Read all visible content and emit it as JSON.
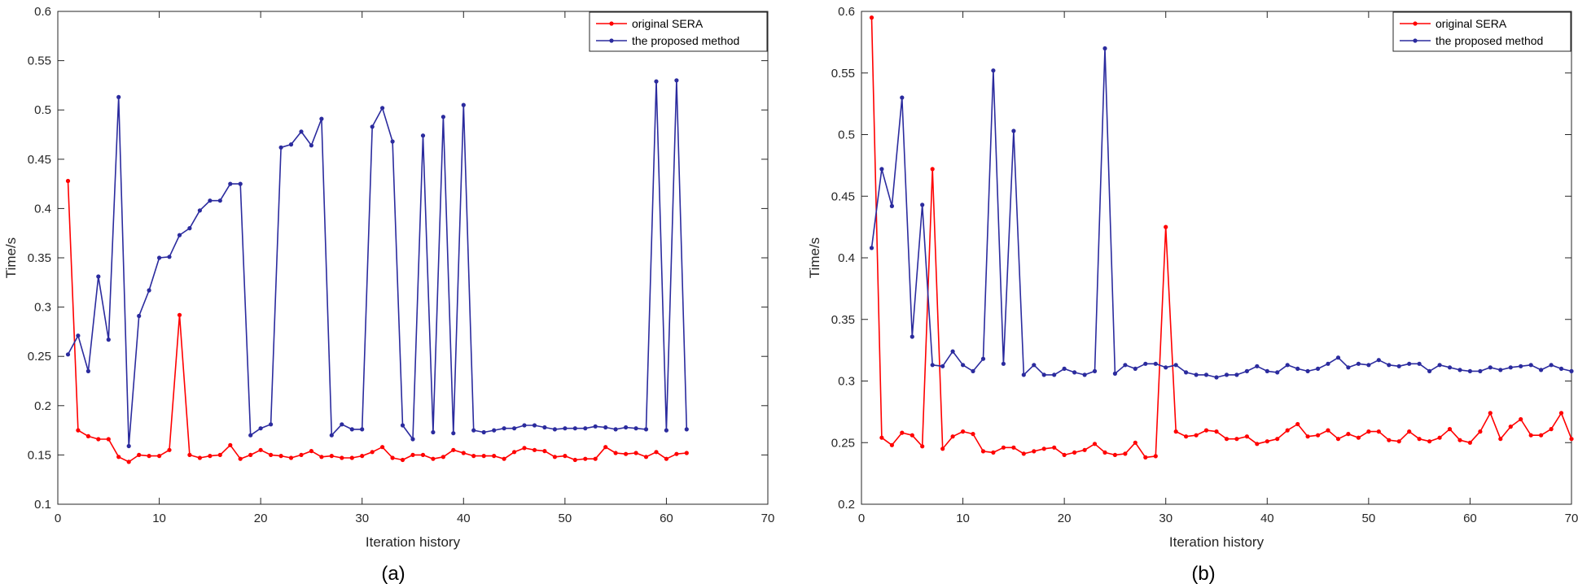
{
  "chart_data": [
    {
      "type": "line",
      "caption": "(a)",
      "xlabel": "Iteration history",
      "ylabel": "Time/s",
      "xlim": [
        0,
        70
      ],
      "ylim": [
        0.1,
        0.6
      ],
      "xticks": [
        0,
        10,
        20,
        30,
        40,
        50,
        60,
        70
      ],
      "yticks": [
        0.1,
        0.15,
        0.2,
        0.25,
        0.3,
        0.35,
        0.4,
        0.45,
        0.5,
        0.55,
        0.6
      ],
      "xtick_labels": [
        "0",
        "10",
        "20",
        "30",
        "40",
        "50",
        "60",
        "70"
      ],
      "ytick_labels": [
        "0.1",
        "0.15",
        "0.2",
        "0.25",
        "0.3",
        "0.35",
        "0.4",
        "0.45",
        "0.5",
        "0.55",
        "0.6"
      ],
      "legend_position": "top-right",
      "series": [
        {
          "name": "original SERA",
          "color": "#ff0000",
          "x": [
            1,
            2,
            3,
            4,
            5,
            6,
            7,
            8,
            9,
            10,
            11,
            12,
            13,
            14,
            15,
            16,
            17,
            18,
            19,
            20,
            21,
            22,
            23,
            24,
            25,
            26,
            27,
            28,
            29,
            30,
            31,
            32,
            33,
            34,
            35,
            36,
            37,
            38,
            39,
            40,
            41,
            42,
            43,
            44,
            45,
            46,
            47,
            48,
            49,
            50,
            51,
            52,
            53,
            54,
            55,
            56,
            57,
            58,
            59,
            60,
            61,
            62
          ],
          "values": [
            0.428,
            0.175,
            0.169,
            0.166,
            0.166,
            0.148,
            0.143,
            0.15,
            0.149,
            0.149,
            0.155,
            0.292,
            0.15,
            0.147,
            0.149,
            0.15,
            0.16,
            0.146,
            0.15,
            0.155,
            0.15,
            0.149,
            0.147,
            0.15,
            0.154,
            0.148,
            0.149,
            0.147,
            0.147,
            0.149,
            0.153,
            0.158,
            0.147,
            0.145,
            0.15,
            0.15,
            0.146,
            0.148,
            0.155,
            0.152,
            0.149,
            0.149,
            0.149,
            0.146,
            0.153,
            0.157,
            0.155,
            0.154,
            0.148,
            0.149,
            0.145,
            0.146,
            0.146,
            0.158,
            0.152,
            0.151,
            0.152,
            0.148,
            0.153,
            0.146,
            0.151,
            0.152
          ]
        },
        {
          "name": "the proposed method",
          "color": "#2b2b9e",
          "x": [
            1,
            2,
            3,
            4,
            5,
            6,
            7,
            8,
            9,
            10,
            11,
            12,
            13,
            14,
            15,
            16,
            17,
            18,
            19,
            20,
            21,
            22,
            23,
            24,
            25,
            26,
            27,
            28,
            29,
            30,
            31,
            32,
            33,
            34,
            35,
            36,
            37,
            38,
            39,
            40,
            41,
            42,
            43,
            44,
            45,
            46,
            47,
            48,
            49,
            50,
            51,
            52,
            53,
            54,
            55,
            56,
            57,
            58,
            59,
            60,
            61,
            62
          ],
          "values": [
            0.252,
            0.271,
            0.235,
            0.331,
            0.267,
            0.513,
            0.159,
            0.291,
            0.317,
            0.35,
            0.351,
            0.373,
            0.38,
            0.398,
            0.408,
            0.408,
            0.425,
            0.425,
            0.17,
            0.177,
            0.181,
            0.462,
            0.465,
            0.478,
            0.464,
            0.491,
            0.17,
            0.181,
            0.176,
            0.176,
            0.483,
            0.502,
            0.468,
            0.18,
            0.166,
            0.474,
            0.173,
            0.493,
            0.172,
            0.505,
            0.175,
            0.173,
            0.175,
            0.177,
            0.177,
            0.18,
            0.18,
            0.178,
            0.176,
            0.177,
            0.177,
            0.177,
            0.179,
            0.178,
            0.176,
            0.178,
            0.177,
            0.176,
            0.529,
            0.175,
            0.53,
            0.176
          ]
        }
      ]
    },
    {
      "type": "line",
      "caption": "(b)",
      "xlabel": "Iteration history",
      "ylabel": "Time/s",
      "xlim": [
        0,
        70
      ],
      "ylim": [
        0.2,
        0.6
      ],
      "xticks": [
        0,
        10,
        20,
        30,
        40,
        50,
        60,
        70
      ],
      "yticks": [
        0.2,
        0.25,
        0.3,
        0.35,
        0.4,
        0.45,
        0.5,
        0.55,
        0.6
      ],
      "xtick_labels": [
        "0",
        "10",
        "20",
        "30",
        "40",
        "50",
        "60",
        "70"
      ],
      "ytick_labels": [
        "0.2",
        "0.25",
        "0.3",
        "0.35",
        "0.4",
        "0.45",
        "0.5",
        "0.55",
        "0.6"
      ],
      "legend_position": "top-right",
      "series": [
        {
          "name": "original SERA",
          "color": "#ff0000",
          "x": [
            1,
            2,
            3,
            4,
            5,
            6,
            7,
            8,
            9,
            10,
            11,
            12,
            13,
            14,
            15,
            16,
            17,
            18,
            19,
            20,
            21,
            22,
            23,
            24,
            25,
            26,
            27,
            28,
            29,
            30,
            31,
            32,
            33,
            34,
            35,
            36,
            37,
            38,
            39,
            40,
            41,
            42,
            43,
            44,
            45,
            46,
            47,
            48,
            49,
            50,
            51,
            52,
            53,
            54,
            55,
            56,
            57,
            58,
            59,
            60,
            61,
            62,
            63,
            64,
            65,
            66,
            67,
            68,
            69,
            70
          ],
          "values": [
            0.595,
            0.254,
            0.248,
            0.258,
            0.256,
            0.247,
            0.472,
            0.245,
            0.255,
            0.259,
            0.257,
            0.243,
            0.242,
            0.246,
            0.246,
            0.241,
            0.243,
            0.245,
            0.246,
            0.24,
            0.242,
            0.244,
            0.249,
            0.242,
            0.24,
            0.241,
            0.25,
            0.238,
            0.239,
            0.425,
            0.259,
            0.255,
            0.256,
            0.26,
            0.259,
            0.253,
            0.253,
            0.255,
            0.249,
            0.251,
            0.253,
            0.26,
            0.265,
            0.255,
            0.256,
            0.26,
            0.253,
            0.257,
            0.254,
            0.259,
            0.259,
            0.252,
            0.251,
            0.259,
            0.253,
            0.251,
            0.254,
            0.261,
            0.252,
            0.25,
            0.259,
            0.274,
            0.253,
            0.263,
            0.269,
            0.256,
            0.256,
            0.261,
            0.274,
            0.253
          ]
        },
        {
          "name": "the proposed method",
          "color": "#2b2b9e",
          "x": [
            1,
            2,
            3,
            4,
            5,
            6,
            7,
            8,
            9,
            10,
            11,
            12,
            13,
            14,
            15,
            16,
            17,
            18,
            19,
            20,
            21,
            22,
            23,
            24,
            25,
            26,
            27,
            28,
            29,
            30,
            31,
            32,
            33,
            34,
            35,
            36,
            37,
            38,
            39,
            40,
            41,
            42,
            43,
            44,
            45,
            46,
            47,
            48,
            49,
            50,
            51,
            52,
            53,
            54,
            55,
            56,
            57,
            58,
            59,
            60,
            61,
            62,
            63,
            64,
            65,
            66,
            67,
            68,
            69,
            70
          ],
          "values": [
            0.408,
            0.472,
            0.442,
            0.53,
            0.336,
            0.443,
            0.313,
            0.312,
            0.324,
            0.313,
            0.308,
            0.318,
            0.552,
            0.314,
            0.503,
            0.305,
            0.313,
            0.305,
            0.305,
            0.31,
            0.307,
            0.305,
            0.308,
            0.57,
            0.306,
            0.313,
            0.31,
            0.314,
            0.314,
            0.311,
            0.313,
            0.307,
            0.305,
            0.305,
            0.303,
            0.305,
            0.305,
            0.308,
            0.312,
            0.308,
            0.307,
            0.313,
            0.31,
            0.308,
            0.31,
            0.314,
            0.319,
            0.311,
            0.314,
            0.313,
            0.317,
            0.313,
            0.312,
            0.314,
            0.314,
            0.308,
            0.313,
            0.311,
            0.309,
            0.308,
            0.308,
            0.311,
            0.309,
            0.311,
            0.312,
            0.313,
            0.309,
            0.313,
            0.31,
            0.308
          ]
        }
      ]
    }
  ]
}
